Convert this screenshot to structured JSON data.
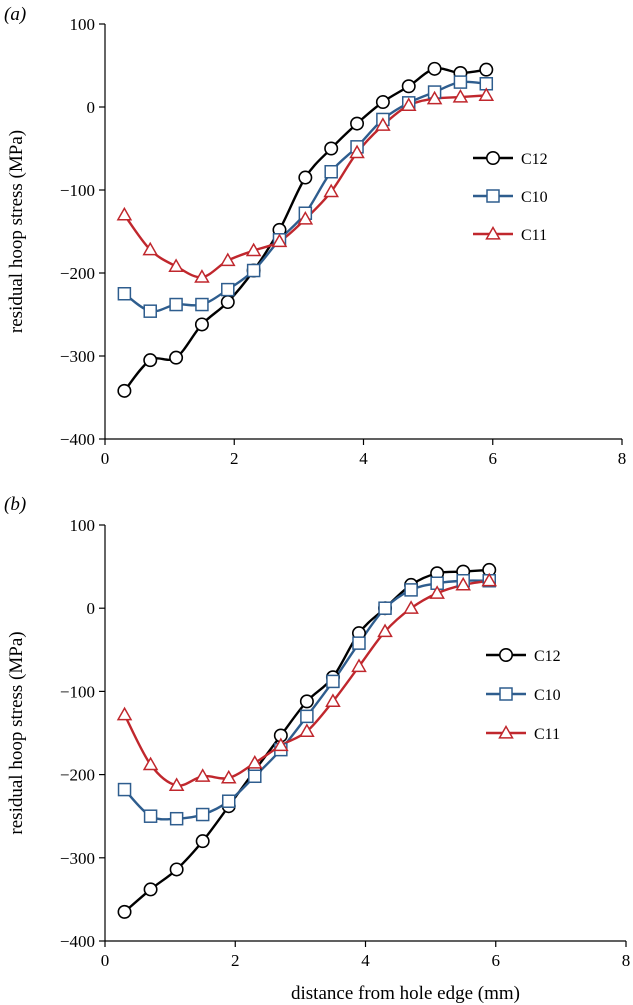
{
  "chart_data": [
    {
      "type": "line",
      "panel_label": "(a)",
      "xlabel": "",
      "ylabel": "residual hoop stress (MPa)",
      "xlim": [
        0,
        8
      ],
      "ylim": [
        -400,
        100
      ],
      "xticks": [
        "0",
        "2",
        "4",
        "6",
        "8"
      ],
      "yticks": [
        "100",
        "0",
        "−100",
        "−200",
        "−300",
        "−400"
      ],
      "legend_position": "right-middle",
      "series": [
        {
          "name": "C12",
          "color": "#000000",
          "marker": "circle",
          "x": [
            0.3,
            0.7,
            1.1,
            1.5,
            1.9,
            2.3,
            2.7,
            3.1,
            3.5,
            3.9,
            4.3,
            4.7,
            5.1,
            5.5,
            5.9
          ],
          "y": [
            -342,
            -305,
            -302,
            -262,
            -235,
            -197,
            -148,
            -85,
            -50,
            -20,
            6,
            25,
            46,
            41,
            45
          ]
        },
        {
          "name": "C10",
          "color": "#2e5d8e",
          "marker": "square",
          "x": [
            0.3,
            0.7,
            1.1,
            1.5,
            1.9,
            2.3,
            2.7,
            3.1,
            3.5,
            3.9,
            4.3,
            4.7,
            5.1,
            5.5,
            5.9
          ],
          "y": [
            -225,
            -246,
            -238,
            -238,
            -220,
            -197,
            -160,
            -128,
            -78,
            -48,
            -15,
            5,
            18,
            30,
            28
          ]
        },
        {
          "name": "C11",
          "color": "#c0272d",
          "marker": "triangle",
          "x": [
            0.3,
            0.7,
            1.1,
            1.5,
            1.9,
            2.3,
            2.7,
            3.1,
            3.5,
            3.9,
            4.3,
            4.7,
            5.1,
            5.5,
            5.9
          ],
          "y": [
            -130,
            -172,
            -192,
            -205,
            -185,
            -173,
            -162,
            -135,
            -102,
            -55,
            -22,
            2,
            10,
            12,
            14
          ]
        }
      ]
    },
    {
      "type": "line",
      "panel_label": "(b)",
      "xlabel": "distance from hole edge (mm)",
      "ylabel": "residual hoop stress (MPa)",
      "xlim": [
        0,
        8
      ],
      "ylim": [
        -400,
        100
      ],
      "xticks": [
        "0",
        "2",
        "4",
        "6",
        "8"
      ],
      "yticks": [
        "100",
        "0",
        "−100",
        "−200",
        "−300",
        "−400"
      ],
      "legend_position": "right-middle",
      "series": [
        {
          "name": "C12",
          "color": "#000000",
          "marker": "circle",
          "x": [
            0.3,
            0.7,
            1.1,
            1.5,
            1.9,
            2.3,
            2.7,
            3.1,
            3.5,
            3.9,
            4.3,
            4.7,
            5.1,
            5.5,
            5.9
          ],
          "y": [
            -365,
            -338,
            -314,
            -280,
            -238,
            -195,
            -153,
            -112,
            -83,
            -30,
            0,
            28,
            42,
            44,
            46
          ]
        },
        {
          "name": "C10",
          "color": "#2e5d8e",
          "marker": "square",
          "x": [
            0.3,
            0.7,
            1.1,
            1.5,
            1.9,
            2.3,
            2.7,
            3.1,
            3.5,
            3.9,
            4.3,
            4.7,
            5.1,
            5.5,
            5.9
          ],
          "y": [
            -218,
            -250,
            -253,
            -248,
            -232,
            -202,
            -170,
            -130,
            -88,
            -42,
            0,
            22,
            30,
            33,
            33
          ]
        },
        {
          "name": "C11",
          "color": "#c0272d",
          "marker": "triangle",
          "x": [
            0.3,
            0.7,
            1.1,
            1.5,
            1.9,
            2.3,
            2.7,
            3.1,
            3.5,
            3.9,
            4.3,
            4.7,
            5.1,
            5.5,
            5.9
          ],
          "y": [
            -128,
            -188,
            -213,
            -202,
            -204,
            -186,
            -165,
            -148,
            -112,
            -70,
            -28,
            0,
            18,
            28,
            33
          ]
        }
      ]
    }
  ]
}
